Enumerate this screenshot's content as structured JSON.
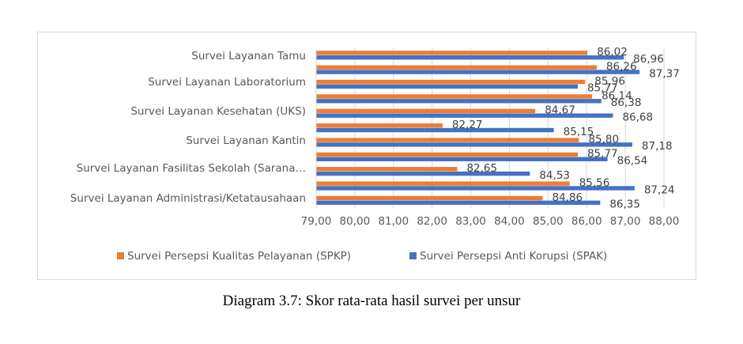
{
  "chart_data": {
    "type": "bar",
    "orientation": "horizontal",
    "category_labels": [
      "Survei Layanan Tamu",
      "Survei Layanan Laboratorium",
      "Survei Layanan Kesehatan (UKS)",
      "Survei Layanan Kantin",
      "Survei Layanan Fasilitas Sekolah (Sarana…",
      "Survei Layanan Administrasi/Ketatausahaan"
    ],
    "series": [
      {
        "name": "Survei Persepsi Kualitas Pelayanan (SPKP)",
        "color": "#ED7D31",
        "values": [
          86.02,
          86.26,
          85.96,
          86.14,
          84.67,
          82.27,
          85.8,
          85.77,
          82.65,
          85.56,
          84.86
        ]
      },
      {
        "name": "Survei Persepsi Anti Korupsi (SPAK)",
        "color": "#4472C4",
        "values": [
          86.96,
          87.37,
          85.77,
          86.38,
          86.68,
          85.15,
          87.18,
          86.54,
          84.53,
          87.24,
          86.35
        ]
      }
    ],
    "data_labels": {
      "spkp": [
        "86,02",
        "86,26",
        "85,96",
        "86,14",
        "84,67",
        "82,27",
        "85,80",
        "85,77",
        "82,65",
        "85,56",
        "84,86"
      ],
      "spak": [
        "86,96",
        "87,37",
        "85,77",
        "86,38",
        "86,68",
        "85,15",
        "87,18",
        "86,54",
        "84,53",
        "87,24",
        "86,35"
      ]
    },
    "x_ticks": [
      "79,00",
      "80,00",
      "81,00",
      "82,00",
      "83,00",
      "84,00",
      "85,00",
      "86,00",
      "87,00",
      "88,00"
    ],
    "xlim": [
      79,
      88
    ],
    "grid": true,
    "legend_position": "bottom"
  },
  "caption": "Diagram 3.7: Skor rata-rata hasil survei per unsur"
}
